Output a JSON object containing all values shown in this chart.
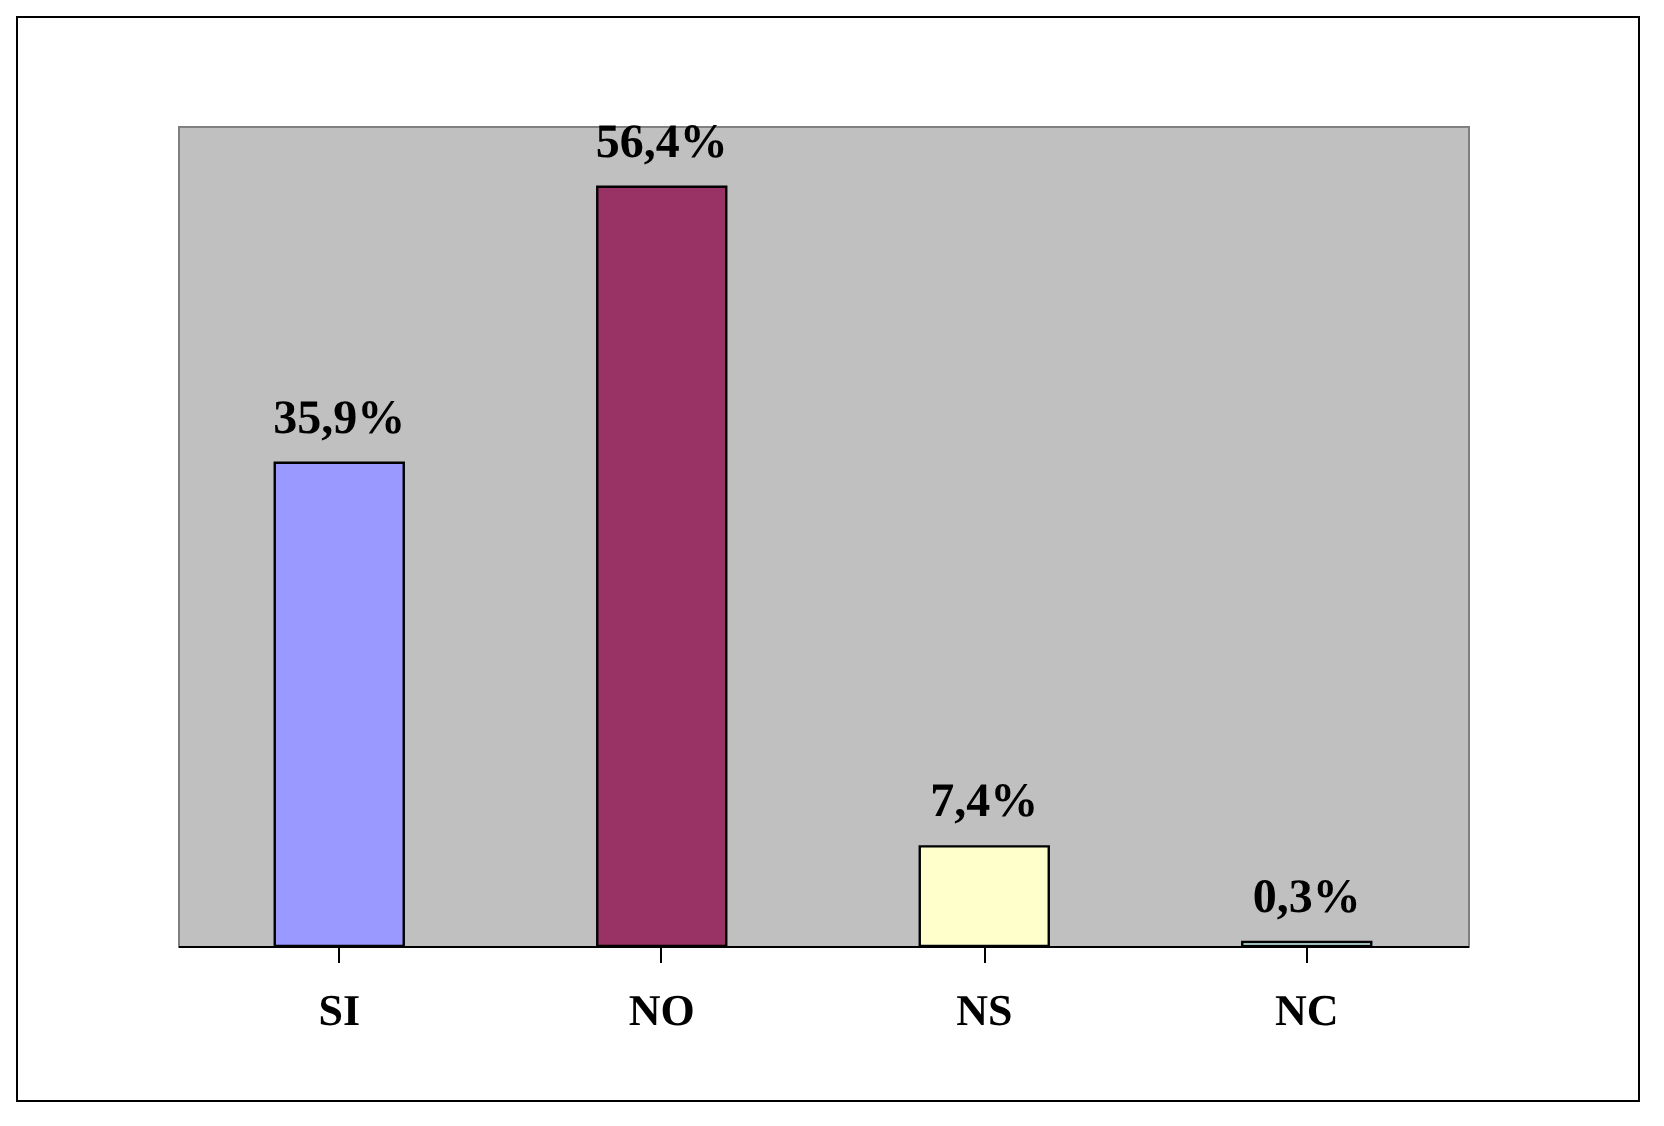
{
  "chart_data": {
    "type": "bar",
    "categories": [
      "SI",
      "NO",
      "NS",
      "NC"
    ],
    "values": [
      35.9,
      56.4,
      7.4,
      0.3
    ],
    "colors": [
      "#9999ff",
      "#993366",
      "#ffffcc",
      "#ccffff"
    ],
    "value_labels": [
      "35,9%",
      "56,4%",
      "7,4%",
      "0,3%"
    ],
    "grid": false,
    "legend": false
  }
}
